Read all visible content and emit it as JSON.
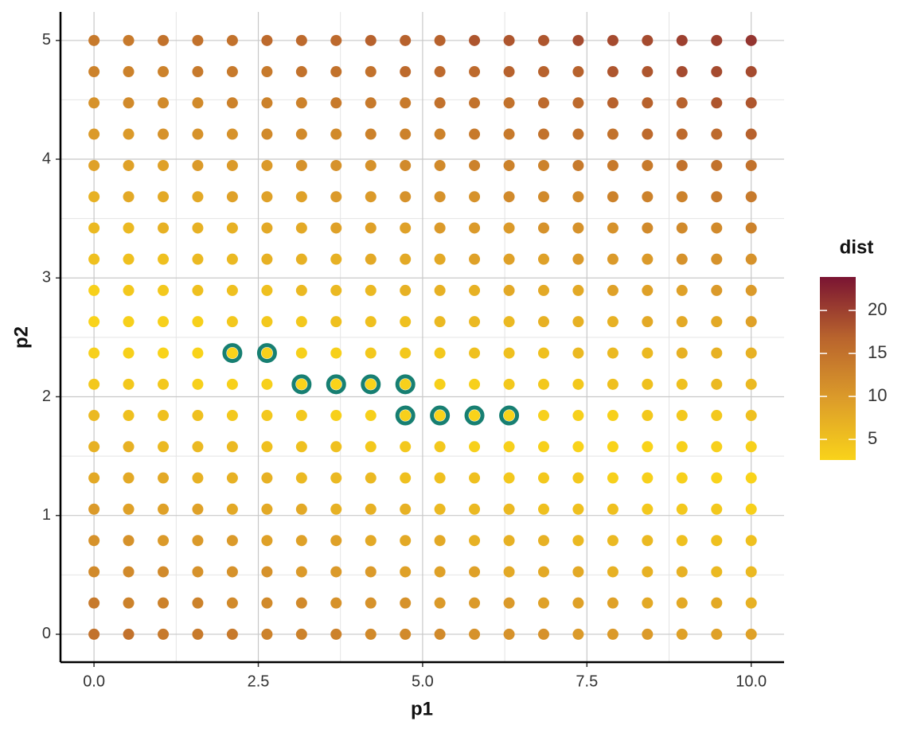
{
  "chart_data": {
    "type": "scatter",
    "x_label": "p1",
    "y_label": "p2",
    "x": [
      0,
      0.526,
      1.053,
      1.579,
      2.105,
      2.632,
      3.158,
      3.684,
      4.211,
      4.737,
      5.263,
      5.789,
      6.316,
      6.842,
      7.368,
      7.895,
      8.421,
      8.947,
      9.474,
      10
    ],
    "y": [
      0,
      0.263,
      0.526,
      0.789,
      1.053,
      1.316,
      1.579,
      1.842,
      2.105,
      2.368,
      2.632,
      2.895,
      3.158,
      3.421,
      3.684,
      3.947,
      4.211,
      4.474,
      4.737,
      5
    ],
    "values": [
      [
        15,
        15,
        14,
        14,
        14,
        13,
        13,
        13,
        12,
        12,
        12,
        11,
        11,
        11,
        10,
        10,
        10,
        9,
        9,
        9
      ],
      [
        14,
        13,
        13,
        13,
        12,
        12,
        12,
        11,
        11,
        11,
        10,
        10,
        10,
        9,
        9,
        9,
        8,
        8,
        8,
        7
      ],
      [
        12,
        12,
        12,
        11,
        11,
        11,
        10,
        10,
        10,
        9,
        9,
        9,
        8,
        8,
        8,
        7,
        7,
        7,
        6,
        6
      ],
      [
        11,
        11,
        10,
        10,
        10,
        9,
        9,
        9,
        8,
        8,
        8,
        7,
        7,
        7,
        6,
        6,
        6,
        5,
        5,
        5
      ],
      [
        10,
        9,
        9,
        9,
        8,
        8,
        8,
        7,
        7,
        7,
        6,
        6,
        6,
        5,
        5,
        5,
        4,
        4,
        4,
        3
      ],
      [
        8,
        8,
        8,
        7,
        7,
        7,
        6,
        6,
        6,
        5,
        5,
        5,
        4,
        4,
        4,
        3,
        3,
        3,
        2,
        2
      ],
      [
        7,
        7,
        6,
        6,
        6,
        5,
        5,
        5,
        4,
        4,
        4,
        3,
        3,
        3,
        2,
        2,
        2,
        3,
        3,
        3
      ],
      [
        6,
        5,
        5,
        5,
        4,
        4,
        4,
        3,
        3,
        3,
        2,
        2,
        2,
        3,
        3,
        3,
        4,
        4,
        4,
        5
      ],
      [
        4,
        4,
        4,
        3,
        3,
        3,
        2,
        2,
        2,
        3,
        3,
        3,
        4,
        4,
        4,
        5,
        5,
        5,
        6,
        6
      ],
      [
        3,
        3,
        2,
        2,
        2,
        3,
        3,
        3,
        4,
        4,
        4,
        5,
        5,
        5,
        6,
        6,
        6,
        7,
        7,
        7
      ],
      [
        2,
        3,
        3,
        3,
        4,
        4,
        4,
        5,
        5,
        5,
        6,
        6,
        6,
        7,
        7,
        7,
        8,
        8,
        8,
        9
      ],
      [
        3,
        4,
        4,
        5,
        5,
        5,
        6,
        6,
        6,
        7,
        7,
        7,
        8,
        8,
        8,
        9,
        9,
        9,
        10,
        10
      ],
      [
        5,
        5,
        5,
        6,
        6,
        7,
        7,
        7,
        8,
        8,
        8,
        9,
        9,
        9,
        10,
        10,
        10,
        11,
        11,
        11
      ],
      [
        6,
        6,
        7,
        7,
        7,
        8,
        8,
        9,
        9,
        9,
        10,
        10,
        10,
        11,
        11,
        11,
        12,
        12,
        12,
        13
      ],
      [
        7,
        8,
        8,
        8,
        9,
        9,
        9,
        10,
        10,
        11,
        11,
        11,
        12,
        12,
        12,
        13,
        13,
        13,
        14,
        14
      ],
      [
        9,
        9,
        9,
        10,
        10,
        10,
        11,
        11,
        11,
        12,
        12,
        13,
        13,
        13,
        14,
        14,
        14,
        15,
        15,
        15
      ],
      [
        10,
        10,
        11,
        11,
        11,
        12,
        12,
        12,
        13,
        13,
        13,
        14,
        14,
        15,
        15,
        15,
        16,
        16,
        16,
        17
      ],
      [
        11,
        12,
        12,
        12,
        13,
        13,
        13,
        14,
        14,
        14,
        15,
        15,
        15,
        16,
        16,
        17,
        17,
        17,
        18,
        18
      ],
      [
        13,
        13,
        13,
        14,
        14,
        14,
        15,
        15,
        15,
        16,
        16,
        16,
        17,
        17,
        17,
        18,
        18,
        19,
        19,
        19
      ],
      [
        14,
        14,
        15,
        15,
        15,
        16,
        16,
        16,
        17,
        17,
        17,
        18,
        18,
        18,
        19,
        19,
        19,
        20,
        20,
        21
      ]
    ],
    "highlighted": {
      "color": "#177f72",
      "x": [
        2.105,
        2.632,
        3.158,
        3.684,
        4.211,
        4.737,
        4.737,
        5.263,
        5.789,
        6.316
      ],
      "y": [
        2.368,
        2.368,
        2.105,
        2.105,
        2.105,
        2.105,
        1.842,
        1.842,
        1.842,
        1.842
      ]
    },
    "xlim": [
      -0.51,
      10.5
    ],
    "ylim": [
      -0.235,
      5.24
    ],
    "xticks": [
      {
        "value": 0,
        "label": "0.0"
      },
      {
        "value": 2.5,
        "label": "2.5"
      },
      {
        "value": 5,
        "label": "5.0"
      },
      {
        "value": 7.5,
        "label": "7.5"
      },
      {
        "value": 10,
        "label": "10.0"
      }
    ],
    "yticks": [
      0,
      1,
      2,
      3,
      4,
      5
    ],
    "x_minor_ticks": [
      1.25,
      3.75,
      6.25,
      8.75
    ],
    "y_minor_ticks": [
      0.5,
      1.5,
      2.5,
      3.5,
      4.5
    ],
    "grid": true,
    "colorbar": {
      "title": "dist",
      "lim": [
        2.6,
        23.9
      ],
      "ticks": [
        5,
        10,
        15,
        20
      ],
      "colors": [
        "#f9d31a",
        "#dc9c2a",
        "#b9642d",
        "#7a1432"
      ]
    }
  }
}
